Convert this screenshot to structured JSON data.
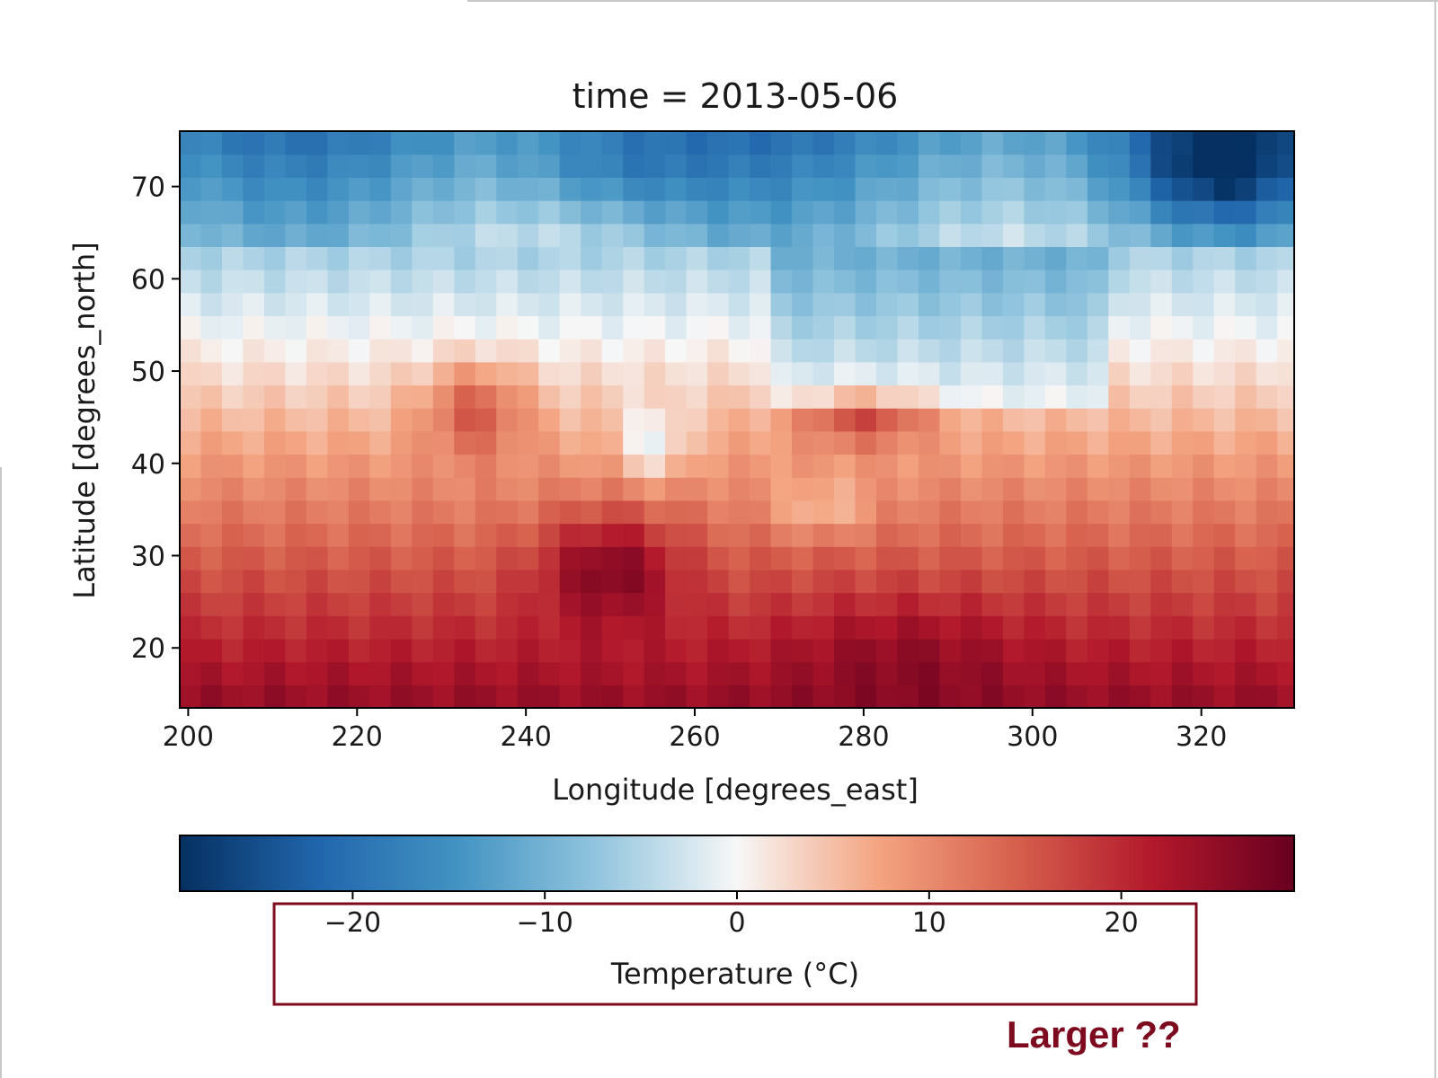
{
  "chart_data": {
    "type": "heatmap",
    "title": "time = 2013-05-06",
    "xlabel": "Longitude [degrees_east]",
    "ylabel": "Latitude [degrees_north]",
    "xlim": [
      199,
      331
    ],
    "ylim": [
      13.5,
      76
    ],
    "xticks": [
      200,
      220,
      240,
      260,
      280,
      300,
      320
    ],
    "yticks": [
      20,
      30,
      40,
      50,
      60,
      70
    ],
    "grid": false,
    "colormap": "RdBu_r",
    "cell_size_deg": 2.5,
    "colorbar": {
      "label": "Temperature (°C)",
      "vmin": -29,
      "vmax": 29,
      "ticks": [
        -20,
        -10,
        0,
        10,
        20
      ],
      "tick_labels": [
        "−20",
        "−10",
        "0",
        "10",
        "20"
      ],
      "orientation": "horizontal"
    },
    "features": {
      "polar_cold_band_lat_min": 64,
      "arctic_east": {
        "lon": 322,
        "lat": 72,
        "value": -24
      },
      "west_hot_spot": {
        "lon": 234,
        "lat": 46,
        "value": 20
      },
      "central_hot_spot": {
        "lon": 280,
        "lat": 45,
        "value": 20
      },
      "desert_hot_spot": {
        "lon": 250,
        "lat": 29,
        "value": 27
      },
      "tropical_max": {
        "lon": 285,
        "lat": 20,
        "value": 26
      }
    }
  },
  "annotation": {
    "label": "Larger ??",
    "color": "#7d0a1e"
  },
  "colors": {
    "annotation_box": "#7d0a1e",
    "axis": "#000000",
    "text": "#1a1a1a"
  }
}
